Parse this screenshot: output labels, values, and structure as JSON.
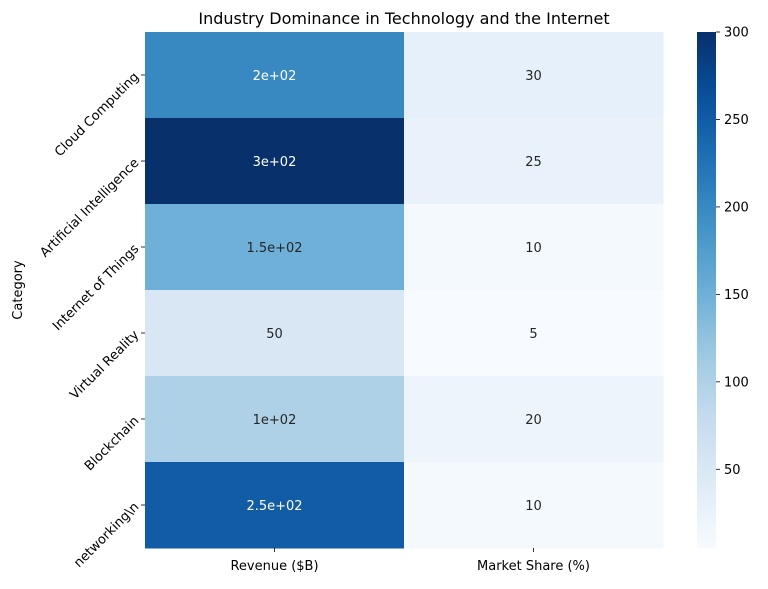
{
  "chart_data": {
    "type": "heatmap",
    "title": "Industry Dominance in Technology and the Internet",
    "xlabel": "",
    "ylabel": "Category",
    "columns": [
      "Revenue ($B)",
      "Market Share (%)"
    ],
    "rows": [
      "Cloud Computing",
      "Artificial Intelligence",
      "Internet of Things",
      "Virtual Reality",
      "Blockchain",
      "networking\\n"
    ],
    "values": [
      [
        200,
        30
      ],
      [
        300,
        25
      ],
      [
        150,
        10
      ],
      [
        50,
        5
      ],
      [
        100,
        20
      ],
      [
        250,
        10
      ]
    ],
    "annotations": [
      [
        "2e+02",
        "30"
      ],
      [
        "3e+02",
        "25"
      ],
      [
        "1.5e+02",
        "10"
      ],
      [
        "50",
        "5"
      ],
      [
        "1e+02",
        "20"
      ],
      [
        "2.5e+02",
        "10"
      ]
    ],
    "colormap": "Blues",
    "colorbar": {
      "min": 5,
      "max": 300,
      "ticks": [
        50,
        100,
        150,
        200,
        250,
        300
      ]
    }
  }
}
